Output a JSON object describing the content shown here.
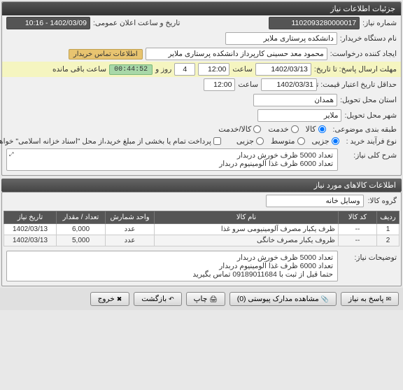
{
  "panel1": {
    "title": "جزئیات اطلاعات نیاز",
    "need_number_label": "شماره نیاز:",
    "need_number": "1102093280000017",
    "buyer_label": "نام دستگاه خریدار:",
    "buyer": "دانشکده پرستاری ملایر",
    "announce_label": "تاریخ و ساعت اعلان عمومی:",
    "announce_value": "1402/03/09 - 10:16",
    "requester_label": "ایجاد کننده درخواست:",
    "requester": "محمود معد حسینی کارپرداز دانشکده پرستاری ملایر",
    "contact_link": "اطلاعات تماس خریدار",
    "deadline_label": "مهلت ارسال پاسخ: تا تاریخ:",
    "deadline_date": "1402/03/13",
    "time_label": "ساعت",
    "deadline_time": "12:00",
    "day_label": "روز و",
    "day_value": "4",
    "remain_label": "ساعت باقی مانده",
    "timer": "00:44:52",
    "validity_label": "حداقل تاریخ اعتبار قیمت: تا تاریخ:",
    "validity_date": "1402/03/31",
    "validity_time": "12:00",
    "province_label": "استان محل تحویل:",
    "province": "همدان",
    "city_label": "شهر محل تحویل:",
    "city": "ملایر",
    "category_label": "طبقه بندی موضوعی:",
    "cat_goods": "کالا",
    "cat_service": "خدمت",
    "cat_both": "کالا/خدمت",
    "process_label": "نوع فرآیند خرید :",
    "proc_small": "جزیی",
    "proc_medium": "متوسط",
    "proc_large": "جزیی",
    "payment_note": "پرداخت تمام یا بخشی از مبلغ خرید،از محل \"اسناد خزانه اسلامی\" خواهد بود.",
    "desc_label": "شرح کلی نیاز:",
    "desc_line1": "تعداد 5000 ظرف خورش دربدار",
    "desc_line2": "تعداد 6000 ظرف غذا آلومینیوم دربدار"
  },
  "items": {
    "header": "اطلاعات کالاهای مورد نیاز",
    "group_label": "گروه کالا:",
    "group_value": "وسایل خانه",
    "cols": {
      "row": "ردیف",
      "code": "کد کالا",
      "name": "نام کالا",
      "unit": "واحد شمارش",
      "qty": "تعداد / مقدار",
      "date": "تاریخ نیاز"
    },
    "rows": [
      {
        "n": "1",
        "code": "--",
        "name": "ظرف یکبار مصرف آلومینیومی سرو غذا",
        "unit": "عدد",
        "qty": "6,000",
        "date": "1402/03/13"
      },
      {
        "n": "2",
        "code": "--",
        "name": "ظروف یکبار مصرف خانگی",
        "unit": "عدد",
        "qty": "5,000",
        "date": "1402/03/13"
      }
    ],
    "notes_label": "توضیحات نیاز:",
    "notes_l1": "تعداد 5000 ظرف خورش دربدار",
    "notes_l2": "تعداد 6000 ظرف غذا آلومینیوم دربدار",
    "notes_l3": "حتما قبل از ثبت با 09189011684 تماس بگیرید"
  },
  "buttons": {
    "reply": "پاسخ به نیاز",
    "attachments": "مشاهده مدارک پیوستی (0)",
    "print": "چاپ",
    "back": "بازگشت",
    "exit": "خروج"
  },
  "colors": {
    "header_bg": "#444444",
    "timer_bg": "#a8d8a8",
    "contact_bg": "#e8c470"
  }
}
